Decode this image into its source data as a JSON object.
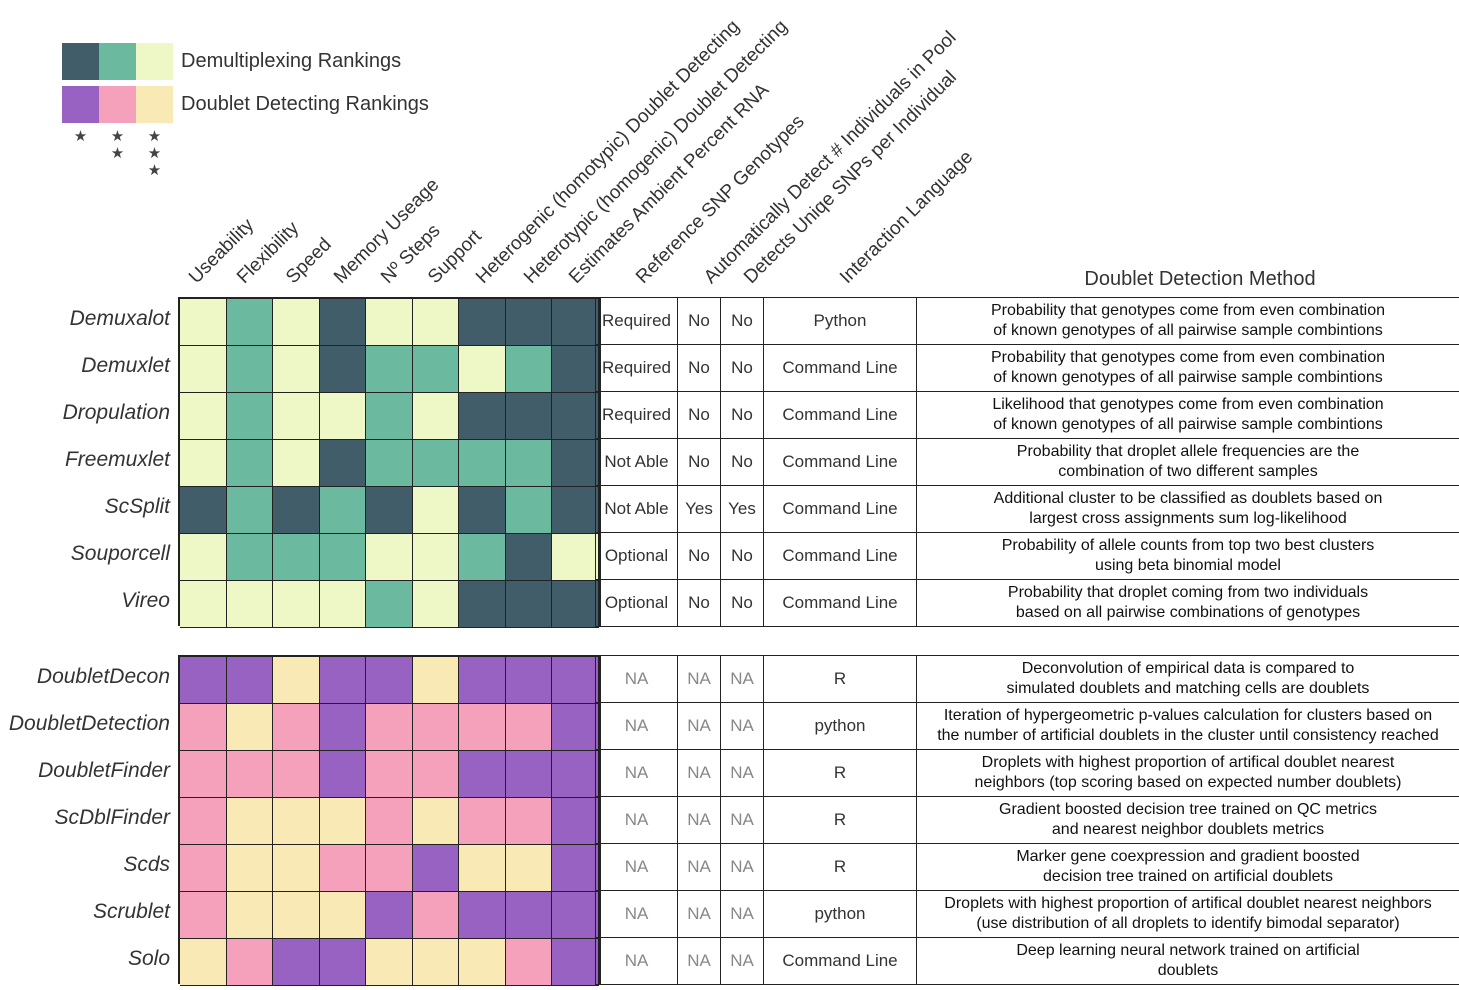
{
  "legend": {
    "rows": [
      {
        "label": "Demultiplexing Rankings",
        "colors": [
          "#425d6a",
          "#6bbaa0",
          "#eef7c6"
        ]
      },
      {
        "label": "Doublet Detecting Rankings",
        "colors": [
          "#9862c2",
          "#f6a1bc",
          "#f8e9b5"
        ]
      }
    ],
    "stars": [
      "★",
      "★\n★",
      "★\n★\n★"
    ]
  },
  "column_headers": [
    "Useability",
    "Flexibility",
    "Speed",
    "Memory Useage",
    "Nº Steps",
    "Support",
    "Heterogenic (homotypic) Doublet Detecting",
    "Heterotypic (homogenic) Doublet Detecting",
    "Estimates Ambient Percent RNA",
    "Reference SNP Genotypes",
    "Automatically Detect # Individuals in Pool",
    "Detects Uniqe SNPs per Individual",
    "Interaction Language"
  ],
  "method_header": "Doublet Detection Method",
  "colors": {
    "d1": "#425d6a",
    "d2": "#6bbaa0",
    "d3": "#eef7c6",
    "p1": "#9862c2",
    "p2": "#f6a1bc",
    "p3": "#f8e9b5"
  },
  "demultiplexing": [
    {
      "name": "Demuxalot",
      "cells": [
        "d3",
        "d2",
        "d3",
        "d1",
        "d3",
        "d3",
        "d1",
        "d1",
        "d1"
      ],
      "ref": "Required",
      "auto": "No",
      "uniq": "No",
      "lang": "Python",
      "method": "Probability that genotypes come from even combination\nof known genotypes of all pairwise sample combintions"
    },
    {
      "name": "Demuxlet",
      "cells": [
        "d3",
        "d2",
        "d3",
        "d1",
        "d2",
        "d2",
        "d3",
        "d2",
        "d1"
      ],
      "ref": "Required",
      "auto": "No",
      "uniq": "No",
      "lang": "Command Line",
      "method": "Probability that genotypes come from even combination\nof known genotypes of all pairwise sample combintions"
    },
    {
      "name": "Dropulation",
      "cells": [
        "d3",
        "d2",
        "d3",
        "d3",
        "d2",
        "d3",
        "d1",
        "d1",
        "d1"
      ],
      "ref": "Required",
      "auto": "No",
      "uniq": "No",
      "lang": "Command Line",
      "method": "Likelihood that genotypes come from even combination\nof known genotypes of all pairwise sample combintions"
    },
    {
      "name": "Freemuxlet",
      "cells": [
        "d3",
        "d2",
        "d3",
        "d1",
        "d2",
        "d2",
        "d2",
        "d2",
        "d1"
      ],
      "ref": "Not Able",
      "auto": "No",
      "uniq": "No",
      "lang": "Command Line",
      "method": "Probability that droplet allele frequencies are the\ncombination of two different samples"
    },
    {
      "name": "ScSplit",
      "cells": [
        "d1",
        "d2",
        "d1",
        "d2",
        "d1",
        "d3",
        "d1",
        "d2",
        "d1"
      ],
      "ref": "Not Able",
      "auto": "Yes",
      "uniq": "Yes",
      "lang": "Command Line",
      "method": "Additional cluster to be classified as doublets based on\nlargest cross assignments sum log-likelihood"
    },
    {
      "name": "Souporcell",
      "cells": [
        "d3",
        "d2",
        "d2",
        "d2",
        "d3",
        "d3",
        "d2",
        "d1",
        "d3"
      ],
      "ref": "Optional",
      "auto": "No",
      "uniq": "No",
      "lang": "Command Line",
      "method": "Probability of allele counts from top two best clusters\nusing beta binomial model"
    },
    {
      "name": "Vireo",
      "cells": [
        "d3",
        "d3",
        "d3",
        "d3",
        "d2",
        "d3",
        "d1",
        "d1",
        "d1"
      ],
      "ref": "Optional",
      "auto": "No",
      "uniq": "No",
      "lang": "Command Line",
      "method": "Probability that droplet coming from two individuals\nbased on all pairwise combinations of genotypes"
    }
  ],
  "doublet_detecting": [
    {
      "name": "DoubletDecon",
      "cells": [
        "p1",
        "p1",
        "p3",
        "p1",
        "p1",
        "p3",
        "p1",
        "p1",
        "p1"
      ],
      "ref": "NA",
      "auto": "NA",
      "uniq": "NA",
      "lang": "R",
      "method": "Deconvolution of empirical data is compared to\nsimulated doublets and matching cells are doublets"
    },
    {
      "name": "DoubletDetection",
      "cells": [
        "p2",
        "p3",
        "p2",
        "p1",
        "p2",
        "p2",
        "p2",
        "p2",
        "p1"
      ],
      "ref": "NA",
      "auto": "NA",
      "uniq": "NA",
      "lang": "python",
      "method": "Iteration of hypergeometric p-values calculation for clusters based on\nthe number of artificial doublets in the cluster until consistency reached"
    },
    {
      "name": "DoubletFinder",
      "cells": [
        "p2",
        "p2",
        "p2",
        "p1",
        "p2",
        "p2",
        "p1",
        "p1",
        "p1"
      ],
      "ref": "NA",
      "auto": "NA",
      "uniq": "NA",
      "lang": "R",
      "method": "Droplets with highest proportion of artifical doublet nearest\nneighbors (top scoring based on expected number doublets)"
    },
    {
      "name": "ScDblFinder",
      "cells": [
        "p2",
        "p3",
        "p3",
        "p3",
        "p2",
        "p3",
        "p2",
        "p2",
        "p1"
      ],
      "ref": "NA",
      "auto": "NA",
      "uniq": "NA",
      "lang": "R",
      "method": "Gradient boosted decision tree trained on QC metrics\nand nearest neighbor doublets metrics"
    },
    {
      "name": "Scds",
      "cells": [
        "p2",
        "p3",
        "p3",
        "p2",
        "p2",
        "p1",
        "p3",
        "p3",
        "p1"
      ],
      "ref": "NA",
      "auto": "NA",
      "uniq": "NA",
      "lang": "R",
      "method": "Marker gene coexpression and gradient boosted\ndecision tree trained on artificial doublets"
    },
    {
      "name": "Scrublet",
      "cells": [
        "p2",
        "p3",
        "p3",
        "p3",
        "p1",
        "p2",
        "p1",
        "p1",
        "p1"
      ],
      "ref": "NA",
      "auto": "NA",
      "uniq": "NA",
      "lang": "python",
      "method": "Droplets with highest proportion of artifical doublet nearest neighbors\n(use distribution of all droplets to identify bimodal separator)"
    },
    {
      "name": "Solo",
      "cells": [
        "p3",
        "p2",
        "p1",
        "p1",
        "p3",
        "p3",
        "p3",
        "p2",
        "p1"
      ],
      "ref": "NA",
      "auto": "NA",
      "uniq": "NA",
      "lang": "Command Line",
      "method": "Deep learning neural network trained on artificial\ndoublets"
    }
  ]
}
